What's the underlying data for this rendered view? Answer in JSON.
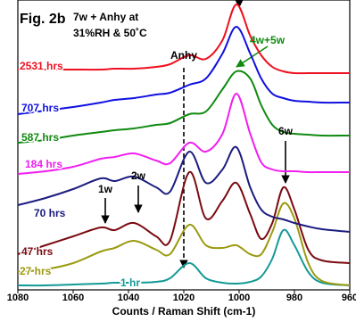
{
  "chart_data": {
    "type": "line",
    "title": "Fig. 2b",
    "subtitle": [
      "7w + Anhy at",
      "31%RH & 50˚C"
    ],
    "x_label": "Counts / Raman Shift (cm-1)",
    "annotations": [
      "Anhy",
      "4w+5w",
      "1w",
      "2w",
      "6w"
    ],
    "x": [
      1080,
      1070,
      1060,
      1050,
      1045,
      1038,
      1030,
      1025,
      1018,
      1012,
      1006,
      1001,
      996,
      992,
      988,
      984,
      980,
      975,
      970,
      960
    ],
    "xlim": [
      1080,
      960
    ],
    "xticks": [
      1080,
      1060,
      1040,
      1020,
      1000,
      980,
      960
    ],
    "ylim": [
      0,
      325
    ],
    "series": [
      {
        "name": "1 hr",
        "color": "#139a96",
        "values": [
          5,
          5,
          6,
          7,
          8,
          8,
          9,
          13,
          30,
          13,
          8,
          7,
          9,
          15,
          35,
          67,
          50,
          20,
          8,
          5
        ]
      },
      {
        "name": "27 hrs",
        "color": "#9c9a10",
        "values": [
          20,
          23,
          30,
          43,
          47,
          55,
          45,
          40,
          73,
          50,
          47,
          50,
          40,
          40,
          65,
          97,
          80,
          30,
          10,
          5
        ]
      },
      {
        "name": "47 hrs",
        "color": "#7a0a10",
        "values": [
          40,
          50,
          60,
          70,
          67,
          75,
          60,
          55,
          132,
          80,
          100,
          120,
          85,
          57,
          75,
          115,
          90,
          45,
          33,
          30
        ]
      },
      {
        "name": "70 hrs",
        "color": "#1c1c80",
        "values": [
          95,
          103,
          113,
          125,
          122,
          127,
          115,
          110,
          155,
          120,
          135,
          160,
          115,
          90,
          82,
          79,
          75,
          71,
          68,
          65
        ]
      },
      {
        "name": "184 hrs",
        "color": "#f020f0",
        "values": [
          130,
          133,
          138,
          147,
          149,
          153,
          145,
          142,
          165,
          155,
          175,
          220,
          175,
          143,
          135,
          133,
          133,
          132,
          132,
          132
        ]
      },
      {
        "name": "587 hrs",
        "color": "#108a10",
        "values": [
          165,
          168,
          173,
          177,
          179,
          181,
          185,
          187,
          197,
          200,
          225,
          245,
          237,
          207,
          185,
          177,
          175,
          174,
          173,
          173
        ]
      },
      {
        "name": "707 hrs",
        "color": "#1010e0",
        "values": [
          197,
          201,
          205,
          210,
          213,
          215,
          219,
          221,
          230,
          237,
          265,
          295,
          265,
          237,
          220,
          215,
          212,
          211,
          210,
          210
        ]
      },
      {
        "name": "2531 hrs",
        "color": "#ee1020",
        "values": [
          247,
          247,
          247,
          247,
          248,
          248,
          250,
          253,
          263,
          259,
          280,
          320,
          285,
          263,
          250,
          245,
          243,
          243,
          243,
          243
        ]
      }
    ]
  }
}
